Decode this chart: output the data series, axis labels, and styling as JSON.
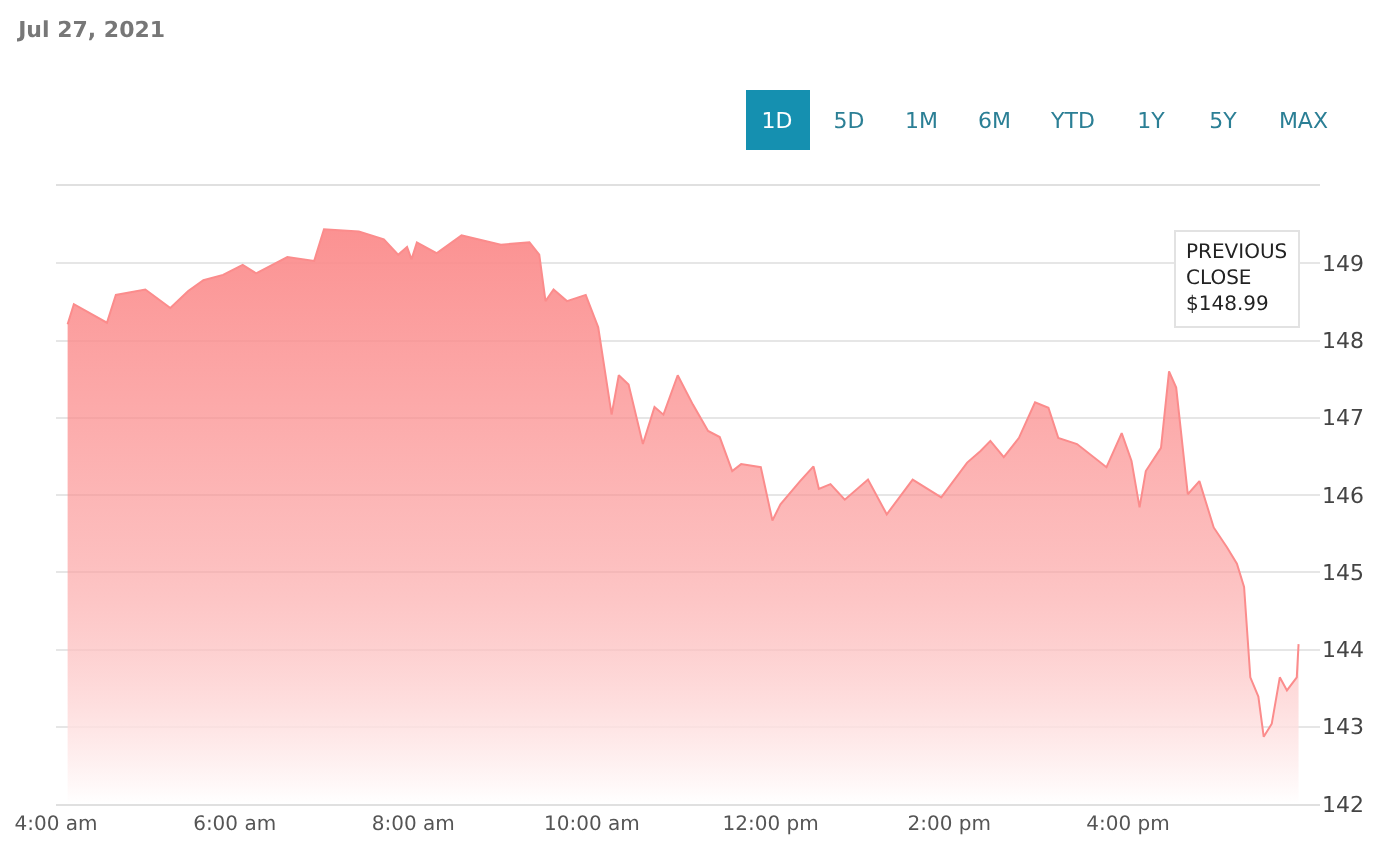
{
  "chart_data": {
    "type": "area",
    "title": "Jul 27, 2021",
    "annotations": [
      "PREVIOUS CLOSE $148.99",
      "1D",
      "5D",
      "1M",
      "6M",
      "YTD",
      "1Y",
      "5Y",
      "MAX"
    ],
    "x": [
      4.13,
      4.2,
      4.57,
      4.67,
      5.0,
      5.28,
      5.48,
      5.65,
      5.87,
      6.09,
      6.24,
      6.59,
      6.89,
      7.0,
      7.39,
      7.67,
      7.83,
      7.93,
      7.98,
      8.04,
      8.26,
      8.54,
      8.98,
      9.3,
      9.41,
      9.48,
      9.57,
      9.72,
      9.93,
      10.07,
      10.22,
      10.3,
      10.41,
      10.57,
      10.7,
      10.8,
      10.96,
      11.13,
      11.3,
      11.43,
      11.57,
      11.67,
      11.89,
      12.02,
      12.11,
      12.33,
      12.48,
      12.54,
      12.67,
      12.83,
      13.09,
      13.3,
      13.59,
      13.91,
      14.2,
      14.35,
      14.46,
      14.61,
      14.78,
      14.96,
      15.11,
      15.22,
      15.43,
      15.76,
      15.93,
      16.04,
      16.13,
      16.2,
      16.37,
      16.46,
      16.54,
      16.67,
      16.8,
      16.96,
      17.11,
      17.22,
      17.3,
      17.37,
      17.46,
      17.52,
      17.61,
      17.7,
      17.78,
      17.89,
      17.91
    ],
    "series": [
      {
        "color": "#fb8c8c",
        "values": [
          148.21,
          148.47,
          148.23,
          148.59,
          148.66,
          148.42,
          148.64,
          148.78,
          148.85,
          148.98,
          148.87,
          149.08,
          149.03,
          149.44,
          149.41,
          149.31,
          149.11,
          149.21,
          149.05,
          149.27,
          149.13,
          149.36,
          149.24,
          149.27,
          149.11,
          148.51,
          148.66,
          148.51,
          148.59,
          148.17,
          147.04,
          147.55,
          147.43,
          146.66,
          147.14,
          147.04,
          147.55,
          147.17,
          146.83,
          146.75,
          146.31,
          146.4,
          146.36,
          145.67,
          145.88,
          146.18,
          146.37,
          146.08,
          146.14,
          145.94,
          146.2,
          145.75,
          146.2,
          145.97,
          146.42,
          146.57,
          146.7,
          146.49,
          146.74,
          147.2,
          147.13,
          146.74,
          146.66,
          146.36,
          146.8,
          146.44,
          145.84,
          146.31,
          146.61,
          147.6,
          147.39,
          146.01,
          146.18,
          145.58,
          145.32,
          145.11,
          144.81,
          143.64,
          143.39,
          142.87,
          143.04,
          143.64,
          143.47,
          143.64,
          144.07
        ]
      }
    ],
    "xlim": [
      4,
      18.15
    ],
    "xticks": [
      {
        "value": 4,
        "label": "4:00 am"
      },
      {
        "value": 6,
        "label": "6:00 am"
      },
      {
        "value": 8,
        "label": "8:00 am"
      },
      {
        "value": 10,
        "label": "10:00 am"
      },
      {
        "value": 12,
        "label": "12:00 pm"
      },
      {
        "value": 14,
        "label": "2:00 pm"
      },
      {
        "value": 16,
        "label": "4:00 pm"
      }
    ],
    "ylim": [
      142,
      150
    ],
    "yticks": [
      142,
      143,
      144,
      145,
      146,
      147,
      148,
      149
    ],
    "grid": "y",
    "marker": "none",
    "line_style": "solid"
  }
}
